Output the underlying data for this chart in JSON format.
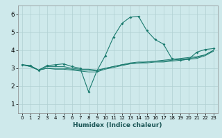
{
  "xlabel": "Humidex (Indice chaleur)",
  "ylabel": "",
  "bg_color": "#cee9eb",
  "grid_color": "#b0d0d2",
  "line_color": "#1a7a6e",
  "xlim": [
    -0.5,
    23.5
  ],
  "ylim": [
    0.5,
    6.5
  ],
  "xticks": [
    0,
    1,
    2,
    3,
    4,
    5,
    6,
    7,
    8,
    9,
    10,
    11,
    12,
    13,
    14,
    15,
    16,
    17,
    18,
    19,
    20,
    21,
    22,
    23
  ],
  "yticks": [
    1,
    2,
    3,
    4,
    5,
    6
  ],
  "series": [
    {
      "x": [
        0,
        1,
        2,
        3,
        4,
        5,
        6,
        7,
        8,
        9,
        10,
        11,
        12,
        13,
        14,
        15,
        16,
        17,
        18,
        19,
        20,
        21,
        22,
        23
      ],
      "y": [
        3.2,
        3.15,
        2.9,
        3.15,
        3.2,
        3.25,
        3.1,
        3.0,
        1.7,
        2.85,
        3.7,
        4.75,
        5.5,
        5.85,
        5.9,
        5.1,
        4.6,
        4.35,
        3.55,
        3.45,
        3.5,
        3.9,
        4.05,
        4.1
      ],
      "markers": true
    },
    {
      "x": [
        0,
        1,
        2,
        3,
        4,
        5,
        6,
        7,
        8,
        9,
        10,
        11,
        12,
        13,
        14,
        15,
        16,
        17,
        18,
        19,
        20,
        21,
        22,
        23
      ],
      "y": [
        3.2,
        3.15,
        2.9,
        3.1,
        3.1,
        3.1,
        3.0,
        2.95,
        2.95,
        2.9,
        3.0,
        3.1,
        3.2,
        3.25,
        3.3,
        3.35,
        3.4,
        3.45,
        3.5,
        3.55,
        3.6,
        3.65,
        3.75,
        4.0
      ],
      "markers": false
    },
    {
      "x": [
        0,
        1,
        2,
        3,
        4,
        5,
        6,
        7,
        8,
        9,
        10,
        11,
        12,
        13,
        14,
        15,
        16,
        17,
        18,
        19,
        20,
        21,
        22,
        23
      ],
      "y": [
        3.2,
        3.1,
        2.9,
        3.0,
        3.0,
        3.0,
        2.95,
        2.9,
        2.9,
        2.85,
        3.0,
        3.1,
        3.2,
        3.3,
        3.35,
        3.35,
        3.4,
        3.4,
        3.45,
        3.5,
        3.55,
        3.6,
        3.75,
        4.0
      ],
      "markers": false
    },
    {
      "x": [
        0,
        1,
        2,
        3,
        4,
        5,
        6,
        7,
        8,
        9,
        10,
        11,
        12,
        13,
        14,
        15,
        16,
        17,
        18,
        19,
        20,
        21,
        22,
        23
      ],
      "y": [
        3.2,
        3.1,
        2.9,
        3.0,
        2.95,
        2.95,
        2.9,
        2.85,
        2.8,
        2.8,
        2.95,
        3.05,
        3.15,
        3.25,
        3.3,
        3.3,
        3.35,
        3.35,
        3.4,
        3.45,
        3.5,
        3.55,
        3.7,
        3.95
      ],
      "markers": false
    }
  ]
}
